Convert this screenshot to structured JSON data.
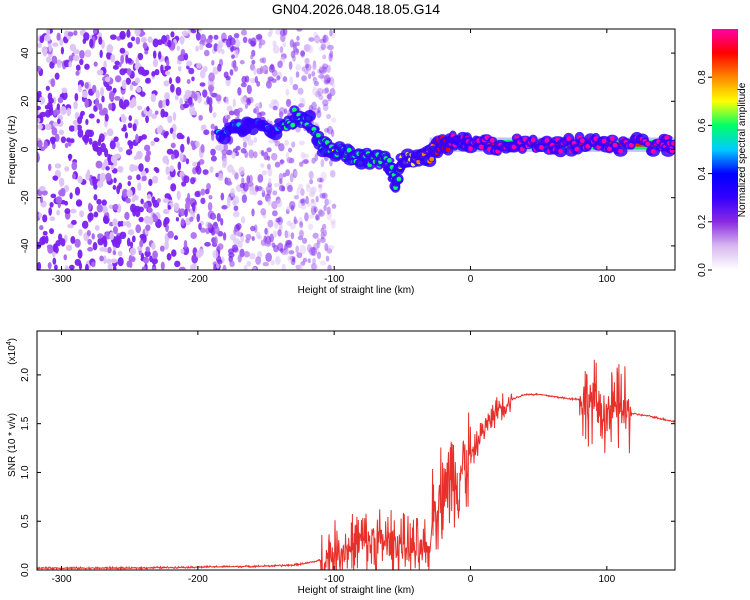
{
  "figure": {
    "title": "GN04.2026.048.18.05.G14"
  },
  "chart_data": [
    {
      "type": "heatmap",
      "title": "GN04.2026.048.18.05.G14",
      "xlabel": "Height of straight line (km)",
      "ylabel": "Frequency (Hz)",
      "xlim": [
        -318,
        150
      ],
      "ylim": [
        -50,
        50
      ],
      "x_ticks": [
        -300,
        -200,
        -100,
        0,
        100
      ],
      "x_tick_labels": [
        "-300",
        "-200",
        "-100",
        "0",
        "100"
      ],
      "y_ticks": [
        -40,
        -20,
        0,
        20,
        40
      ],
      "y_tick_labels": [
        "-40",
        "-20",
        "0",
        "20",
        "40"
      ],
      "colorbar": {
        "label": "Normalized spectral amplitude",
        "range": [
          0,
          1
        ],
        "ticks": [
          0.0,
          0.2,
          0.4,
          0.6,
          0.8
        ],
        "tick_labels": [
          "0.0",
          "0.2",
          "0.4",
          "0.6",
          "0.8"
        ],
        "colormap": [
          "#ffffff",
          "#d8b8f0",
          "#8a2be2",
          "#3300ff",
          "#0000ff",
          "#00ccff",
          "#00ff66",
          "#ffff00",
          "#ff8800",
          "#ff0000",
          "#ff00aa"
        ]
      },
      "features": {
        "noise_region_x": [
          -318,
          -120
        ],
        "track_points": [
          {
            "x": -185,
            "y": 6,
            "a": 0.3
          },
          {
            "x": -170,
            "y": 10,
            "a": 0.35
          },
          {
            "x": -155,
            "y": 8,
            "a": 0.3
          },
          {
            "x": -140,
            "y": 9,
            "a": 0.4
          },
          {
            "x": -128,
            "y": 14,
            "a": 0.45
          },
          {
            "x": -118,
            "y": 12,
            "a": 0.4
          },
          {
            "x": -110,
            "y": 2,
            "a": 0.45
          },
          {
            "x": -100,
            "y": 0,
            "a": 0.5
          },
          {
            "x": -90,
            "y": -2,
            "a": 0.45
          },
          {
            "x": -80,
            "y": -4,
            "a": 0.4
          },
          {
            "x": -70,
            "y": -3,
            "a": 0.45
          },
          {
            "x": -60,
            "y": -6,
            "a": 0.5
          },
          {
            "x": -55,
            "y": -14,
            "a": 0.4
          },
          {
            "x": -50,
            "y": -5,
            "a": 0.55
          },
          {
            "x": -40,
            "y": -5,
            "a": 0.6
          },
          {
            "x": -30,
            "y": -2,
            "a": 0.65
          },
          {
            "x": -22,
            "y": 2,
            "a": 0.75
          },
          {
            "x": -15,
            "y": 3,
            "a": 0.8
          },
          {
            "x": -8,
            "y": 2,
            "a": 0.8
          },
          {
            "x": 0,
            "y": 2,
            "a": 0.85
          },
          {
            "x": 20,
            "y": 2,
            "a": 0.9
          },
          {
            "x": 40,
            "y": 2,
            "a": 0.9
          },
          {
            "x": 60,
            "y": 2,
            "a": 0.9
          },
          {
            "x": 80,
            "y": 2,
            "a": 0.95
          },
          {
            "x": 100,
            "y": 2,
            "a": 0.95
          },
          {
            "x": 120,
            "y": 2,
            "a": 0.95
          },
          {
            "x": 140,
            "y": 2,
            "a": 0.95
          },
          {
            "x": 150,
            "y": 2,
            "a": 0.95
          }
        ]
      }
    },
    {
      "type": "line",
      "xlabel": "Height of straight line (km)",
      "ylabel": "SNR (10 * v/v)",
      "y_exponent_label": "(x10",
      "y_exponent_power": "4",
      "y_exponent_close": ")",
      "xlim": [
        -318,
        150
      ],
      "ylim": [
        0,
        2.45
      ],
      "x_ticks": [
        -300,
        -200,
        -100,
        0,
        100
      ],
      "x_tick_labels": [
        "-300",
        "-200",
        "-100",
        "0",
        "100"
      ],
      "y_ticks": [
        0.0,
        0.5,
        1.0,
        1.5,
        2.0
      ],
      "y_tick_labels": [
        "0.0",
        "0.5",
        "1.0",
        "1.5",
        "2.0"
      ],
      "color": "#e8302a",
      "series": [
        {
          "name": "SNR",
          "x": [
            -318,
            -300,
            -250,
            -200,
            -150,
            -130,
            -120,
            -110,
            -100,
            -90,
            -80,
            -70,
            -60,
            -50,
            -40,
            -35,
            -30,
            -28,
            -25,
            -20,
            -15,
            -10,
            -5,
            0,
            5,
            10,
            20,
            30,
            40,
            50,
            60,
            70,
            80,
            85,
            90,
            95,
            100,
            105,
            110,
            115,
            120,
            130,
            140,
            150
          ],
          "values": [
            0.02,
            0.02,
            0.02,
            0.03,
            0.04,
            0.05,
            0.07,
            0.1,
            0.16,
            0.22,
            0.28,
            0.3,
            0.28,
            0.25,
            0.2,
            0.18,
            0.15,
            0.5,
            0.7,
            0.85,
            0.95,
            1.0,
            1.05,
            1.15,
            1.3,
            1.45,
            1.65,
            1.75,
            1.8,
            1.8,
            1.78,
            1.76,
            1.75,
            1.7,
            1.75,
            1.65,
            1.6,
            1.62,
            1.68,
            1.62,
            1.6,
            1.58,
            1.55,
            1.52
          ]
        }
      ],
      "noise": {
        "bursts": [
          {
            "x_from": -110,
            "x_to": -30,
            "amplitude": 0.35
          },
          {
            "x_from": -28,
            "x_to": 0,
            "amplitude": 0.55
          },
          {
            "x_from": 0,
            "x_to": 30,
            "amplitude": 0.15
          },
          {
            "x_from": 80,
            "x_to": 118,
            "amplitude": 0.45
          }
        ]
      }
    }
  ]
}
